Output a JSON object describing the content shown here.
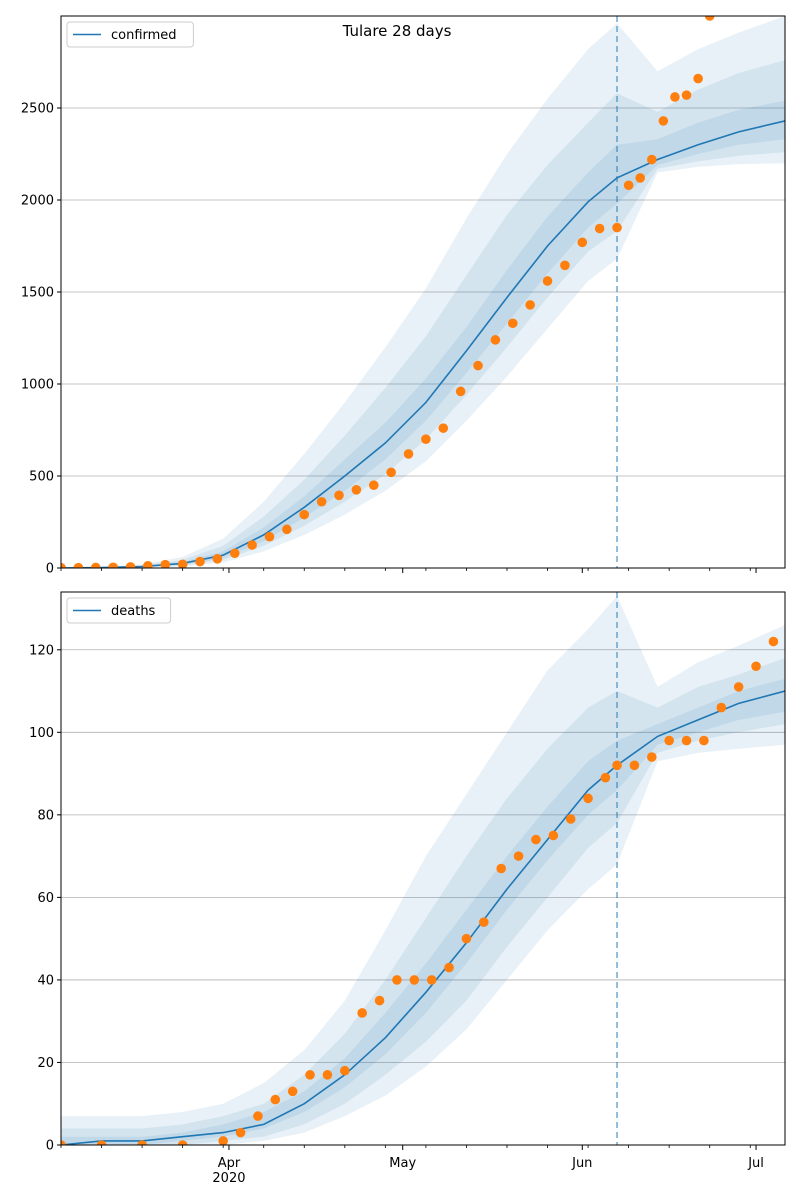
{
  "figure": {
    "title": "Tulare 28 days"
  },
  "colors": {
    "band": "#1f77b4",
    "median_line": "#1f77b4",
    "observed": "#ff7f0e",
    "grid": "#b0b0b0",
    "vline": "#1f77b4"
  },
  "x_axis": {
    "type": "date",
    "range": [
      "2020-03-03",
      "2020-07-06"
    ],
    "month_ticks": [
      {
        "date": "2020-04-01",
        "label": "Apr"
      },
      {
        "date": "2020-05-01",
        "label": "May"
      },
      {
        "date": "2020-06-01",
        "label": "Jun"
      },
      {
        "date": "2020-07-01",
        "label": "Jul"
      }
    ],
    "year_label": "2020",
    "minor_ticks": true
  },
  "forecast_start": "2020-06-07",
  "chart_data": [
    {
      "type": "line",
      "legend": {
        "entries": [
          "confirmed"
        ],
        "placement": "top-left"
      },
      "grid": "horizontal",
      "ylim": [
        0,
        3000
      ],
      "yticks": [
        0,
        500,
        1000,
        1500,
        2000,
        2500
      ],
      "x": [
        "2020-03-03",
        "2020-03-10",
        "2020-03-17",
        "2020-03-24",
        "2020-03-31",
        "2020-04-07",
        "2020-04-14",
        "2020-04-21",
        "2020-04-28",
        "2020-05-05",
        "2020-05-12",
        "2020-05-19",
        "2020-05-26",
        "2020-06-02",
        "2020-06-07",
        "2020-06-14",
        "2020-06-21",
        "2020-06-28",
        "2020-07-06"
      ],
      "median": [
        0,
        2,
        8,
        25,
        70,
        180,
        330,
        500,
        680,
        900,
        1180,
        1470,
        1750,
        1990,
        2120,
        2220,
        2300,
        2370,
        2430
      ],
      "bands": [
        {
          "lower": [
            0,
            0,
            2,
            8,
            30,
            90,
            180,
            290,
            420,
            580,
            800,
            1040,
            1300,
            1560,
            1680,
            2150,
            2180,
            2195,
            2200
          ],
          "upper": [
            0,
            5,
            20,
            60,
            160,
            360,
            620,
            900,
            1200,
            1520,
            1900,
            2250,
            2550,
            2820,
            2960,
            2700,
            2820,
            2910,
            3000
          ]
        },
        {
          "lower": [
            0,
            0,
            3,
            12,
            45,
            120,
            230,
            360,
            510,
            700,
            940,
            1200,
            1470,
            1720,
            1830,
            2170,
            2210,
            2240,
            2260
          ],
          "upper": [
            0,
            4,
            15,
            45,
            120,
            280,
            480,
            720,
            980,
            1260,
            1590,
            1920,
            2190,
            2420,
            2580,
            2480,
            2600,
            2690,
            2760
          ]
        },
        {
          "lower": [
            0,
            1,
            5,
            18,
            55,
            145,
            275,
            420,
            590,
            800,
            1060,
            1330,
            1600,
            1850,
            1980,
            2190,
            2250,
            2300,
            2330
          ],
          "upper": [
            0,
            3,
            11,
            33,
            90,
            220,
            390,
            590,
            790,
            1030,
            1310,
            1620,
            1910,
            2150,
            2300,
            2330,
            2420,
            2490,
            2540
          ]
        }
      ],
      "observed_x": [
        "2020-03-03",
        "2020-03-06",
        "2020-03-09",
        "2020-03-12",
        "2020-03-15",
        "2020-03-18",
        "2020-03-21",
        "2020-03-24",
        "2020-03-27",
        "2020-03-30",
        "2020-04-02",
        "2020-04-05",
        "2020-04-08",
        "2020-04-11",
        "2020-04-14",
        "2020-04-17",
        "2020-04-20",
        "2020-04-23",
        "2020-04-26",
        "2020-04-29",
        "2020-05-02",
        "2020-05-05",
        "2020-05-08",
        "2020-05-11",
        "2020-05-14",
        "2020-05-17",
        "2020-05-20",
        "2020-05-23",
        "2020-05-26",
        "2020-05-29",
        "2020-06-01",
        "2020-06-04",
        "2020-06-07",
        "2020-06-09",
        "2020-06-11",
        "2020-06-13",
        "2020-06-15",
        "2020-06-17",
        "2020-06-19",
        "2020-06-21",
        "2020-06-23"
      ],
      "observed_y": [
        2,
        2,
        3,
        4,
        6,
        12,
        18,
        20,
        35,
        50,
        80,
        125,
        170,
        210,
        290,
        360,
        395,
        425,
        450,
        520,
        620,
        700,
        760,
        960,
        1100,
        1240,
        1330,
        1430,
        1560,
        1645,
        1770,
        1845,
        1850,
        2080,
        2120,
        2220,
        2430,
        2560,
        2570,
        2660,
        3000
      ]
    },
    {
      "type": "line",
      "legend": {
        "entries": [
          "deaths"
        ],
        "placement": "top-left"
      },
      "grid": "horizontal",
      "ylim": [
        0,
        134
      ],
      "yticks": [
        0,
        20,
        40,
        60,
        80,
        100,
        120
      ],
      "x": [
        "2020-03-03",
        "2020-03-10",
        "2020-03-17",
        "2020-03-24",
        "2020-03-31",
        "2020-04-07",
        "2020-04-14",
        "2020-04-21",
        "2020-04-28",
        "2020-05-05",
        "2020-05-12",
        "2020-05-19",
        "2020-05-26",
        "2020-06-02",
        "2020-06-07",
        "2020-06-14",
        "2020-06-21",
        "2020-06-28",
        "2020-07-06"
      ],
      "median": [
        0,
        1,
        1,
        2,
        3,
        5,
        10,
        17,
        26,
        37,
        49,
        62,
        74,
        86,
        92,
        99,
        103,
        107,
        110
      ],
      "bands": [
        {
          "lower": [
            0,
            0,
            0,
            0,
            0,
            1,
            3,
            7,
            12,
            19,
            28,
            40,
            52,
            62,
            68,
            93,
            95,
            96,
            97
          ],
          "upper": [
            7,
            7,
            7,
            8,
            10,
            15,
            23,
            35,
            52,
            70,
            85,
            100,
            115,
            125,
            133,
            111,
            117,
            121,
            126
          ]
        },
        {
          "lower": [
            0,
            0,
            0,
            0,
            1,
            2,
            5,
            10,
            17,
            25,
            35,
            48,
            60,
            72,
            78,
            95,
            98,
            100,
            102
          ],
          "upper": [
            4,
            4,
            4,
            5,
            7,
            10,
            17,
            27,
            40,
            55,
            70,
            84,
            96,
            106,
            110,
            106,
            111,
            114,
            118
          ]
        },
        {
          "lower": [
            0,
            0,
            0,
            1,
            2,
            4,
            8,
            14,
            22,
            32,
            44,
            57,
            69,
            80,
            86,
            97,
            100,
            103,
            105
          ],
          "upper": [
            2,
            2,
            2,
            3,
            5,
            8,
            13,
            21,
            32,
            44,
            57,
            70,
            82,
            93,
            98,
            102,
            106,
            110,
            113
          ]
        }
      ],
      "observed_x": [
        "2020-03-03",
        "2020-03-10",
        "2020-03-17",
        "2020-03-24",
        "2020-03-31",
        "2020-04-03",
        "2020-04-06",
        "2020-04-09",
        "2020-04-12",
        "2020-04-15",
        "2020-04-18",
        "2020-04-21",
        "2020-04-24",
        "2020-04-27",
        "2020-04-30",
        "2020-05-03",
        "2020-05-06",
        "2020-05-09",
        "2020-05-12",
        "2020-05-15",
        "2020-05-18",
        "2020-05-21",
        "2020-05-24",
        "2020-05-27",
        "2020-05-30",
        "2020-06-02",
        "2020-06-05",
        "2020-06-07",
        "2020-06-10",
        "2020-06-13",
        "2020-06-16",
        "2020-06-19",
        "2020-06-22",
        "2020-06-25",
        "2020-06-28",
        "2020-07-01",
        "2020-07-04"
      ],
      "observed_y": [
        0,
        0,
        0,
        0,
        1,
        3,
        7,
        11,
        13,
        17,
        17,
        18,
        32,
        35,
        40,
        40,
        40,
        43,
        50,
        54,
        67,
        70,
        74,
        75,
        79,
        84,
        89,
        92,
        92,
        94,
        98,
        98,
        98,
        106,
        111,
        116,
        122
      ]
    }
  ]
}
